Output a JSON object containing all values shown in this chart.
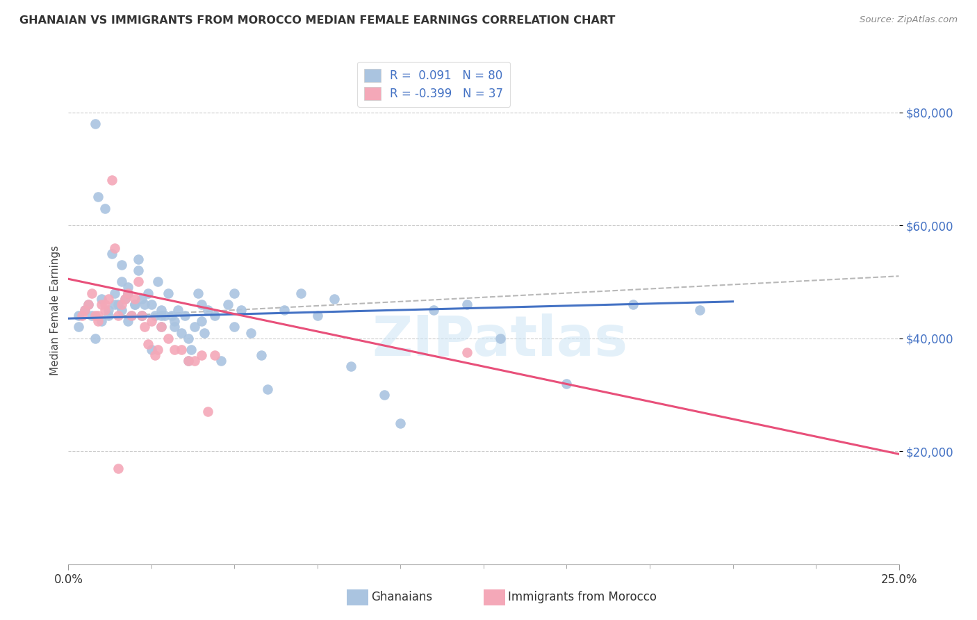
{
  "title": "GHANAIAN VS IMMIGRANTS FROM MOROCCO MEDIAN FEMALE EARNINGS CORRELATION CHART",
  "source": "Source: ZipAtlas.com",
  "ylabel": "Median Female Earnings",
  "y_ticks": [
    20000,
    40000,
    60000,
    80000
  ],
  "y_tick_labels": [
    "$20,000",
    "$40,000",
    "$60,000",
    "$80,000"
  ],
  "x_range": [
    0.0,
    0.25
  ],
  "y_range": [
    0,
    90000
  ],
  "ghanaian_color": "#aac4e0",
  "morocco_color": "#f4a8b8",
  "trend_blue": "#4472c4",
  "trend_pink": "#e8507a",
  "trend_gray": "#b8b8b8",
  "watermark_color": "#cce5f5",
  "watermark_text": "ZIPatlas",
  "ghanaians_label": "Ghanaians",
  "morocco_label": "Immigrants from Morocco",
  "legend_label1": "R =  0.091   N = 80",
  "legend_label2": "R = -0.399   N = 37",
  "ghanaian_x": [
    0.003,
    0.005,
    0.007,
    0.008,
    0.009,
    0.01,
    0.011,
    0.012,
    0.013,
    0.014,
    0.015,
    0.016,
    0.016,
    0.017,
    0.018,
    0.018,
    0.019,
    0.02,
    0.021,
    0.021,
    0.022,
    0.022,
    0.023,
    0.024,
    0.025,
    0.026,
    0.027,
    0.028,
    0.028,
    0.029,
    0.03,
    0.031,
    0.032,
    0.033,
    0.034,
    0.035,
    0.036,
    0.037,
    0.038,
    0.039,
    0.04,
    0.041,
    0.042,
    0.044,
    0.046,
    0.048,
    0.05,
    0.052,
    0.055,
    0.058,
    0.06,
    0.065,
    0.07,
    0.075,
    0.08,
    0.085,
    0.095,
    0.1,
    0.11,
    0.12,
    0.13,
    0.15,
    0.17,
    0.19,
    0.003,
    0.006,
    0.008,
    0.01,
    0.012,
    0.014,
    0.016,
    0.018,
    0.02,
    0.022,
    0.025,
    0.028,
    0.032,
    0.036,
    0.04,
    0.05
  ],
  "ghanaian_y": [
    44000,
    45000,
    44000,
    78000,
    65000,
    43000,
    63000,
    45000,
    55000,
    48000,
    46000,
    50000,
    53000,
    47000,
    48000,
    49000,
    44000,
    46000,
    52000,
    54000,
    44000,
    47000,
    46000,
    48000,
    46000,
    44000,
    50000,
    45000,
    42000,
    44000,
    48000,
    44000,
    43000,
    45000,
    41000,
    44000,
    36000,
    38000,
    42000,
    48000,
    43000,
    41000,
    45000,
    44000,
    36000,
    46000,
    42000,
    45000,
    41000,
    37000,
    31000,
    45000,
    48000,
    44000,
    47000,
    35000,
    30000,
    25000,
    45000,
    46000,
    40000,
    32000,
    46000,
    45000,
    42000,
    46000,
    40000,
    47000,
    44000,
    46000,
    45000,
    43000,
    46000,
    44000,
    38000,
    44000,
    42000,
    40000,
    46000,
    48000
  ],
  "morocco_x": [
    0.004,
    0.005,
    0.007,
    0.008,
    0.009,
    0.01,
    0.011,
    0.012,
    0.013,
    0.014,
    0.015,
    0.016,
    0.017,
    0.018,
    0.019,
    0.02,
    0.021,
    0.022,
    0.023,
    0.024,
    0.025,
    0.026,
    0.027,
    0.028,
    0.03,
    0.032,
    0.034,
    0.036,
    0.038,
    0.04,
    0.042,
    0.044,
    0.12,
    0.006,
    0.009,
    0.011,
    0.015
  ],
  "morocco_y": [
    44000,
    45000,
    48000,
    44000,
    43000,
    46000,
    45000,
    47000,
    68000,
    56000,
    44000,
    46000,
    47000,
    48000,
    44000,
    47000,
    50000,
    44000,
    42000,
    39000,
    43000,
    37000,
    38000,
    42000,
    40000,
    38000,
    38000,
    36000,
    36000,
    37000,
    27000,
    37000,
    37500,
    46000,
    44000,
    46000,
    17000
  ],
  "blue_trend": [
    0.0,
    43500,
    0.2,
    46500
  ],
  "gray_trend": [
    0.0,
    43500,
    0.25,
    51000
  ],
  "pink_trend": [
    0.0,
    50500,
    0.25,
    19500
  ]
}
